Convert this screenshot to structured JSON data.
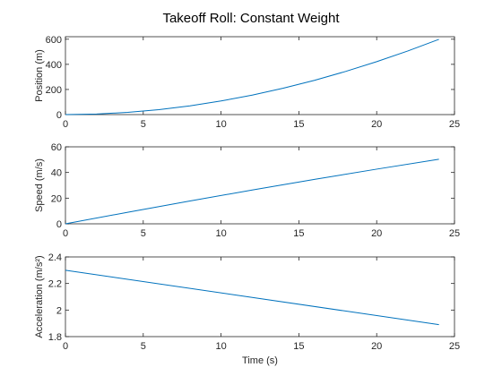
{
  "figure": {
    "title": "Takeoff Roll: Constant Weight",
    "line_color": "#0072bd",
    "axes_color": "#262626",
    "background": "#ffffff"
  },
  "chart_data": [
    {
      "type": "line",
      "title": "",
      "xlabel": "",
      "ylabel": "Position (m)",
      "xlim": [
        0,
        25
      ],
      "ylim": [
        0,
        620
      ],
      "xticks": [
        0,
        5,
        10,
        15,
        20,
        25
      ],
      "yticks": [
        0,
        200,
        400,
        600
      ],
      "xtick_labels": [
        "0",
        "5",
        "10",
        "15",
        "20",
        "25"
      ],
      "ytick_labels": [
        "0",
        "200",
        "400",
        "600"
      ],
      "series": [
        {
          "x": [
            0,
            2,
            4,
            6,
            8,
            10,
            12,
            14,
            16,
            18,
            20,
            22,
            24
          ],
          "y": [
            0,
            4.4,
            17.6,
            39.4,
            69.7,
            108.4,
            155.2,
            210.1,
            272.9,
            343.3,
            421.2,
            506.5,
            599
          ]
        }
      ],
      "grid": false
    },
    {
      "type": "line",
      "title": "",
      "xlabel": "",
      "ylabel": "Speed (m/s)",
      "xlim": [
        0,
        25
      ],
      "ylim": [
        0,
        60
      ],
      "xticks": [
        0,
        5,
        10,
        15,
        20,
        25
      ],
      "yticks": [
        0,
        20,
        40,
        60
      ],
      "xtick_labels": [
        "0",
        "5",
        "10",
        "15",
        "20",
        "25"
      ],
      "ytick_labels": [
        "0",
        "20",
        "40",
        "60"
      ],
      "series": [
        {
          "x": [
            0,
            4,
            8,
            12,
            16,
            20,
            24
          ],
          "y": [
            0,
            9.0,
            17.8,
            26.3,
            34.6,
            42.6,
            50.3
          ]
        }
      ],
      "grid": false
    },
    {
      "type": "line",
      "title": "",
      "xlabel": "Time (s)",
      "ylabel": "Acceleration (m/s²)",
      "xlim": [
        0,
        25
      ],
      "ylim": [
        1.8,
        2.4
      ],
      "xticks": [
        0,
        5,
        10,
        15,
        20,
        25
      ],
      "yticks": [
        1.8,
        2.0,
        2.2,
        2.4
      ],
      "xtick_labels": [
        "0",
        "5",
        "10",
        "15",
        "20",
        "25"
      ],
      "ytick_labels": [
        "1.8",
        "2",
        "2.2",
        "2.4"
      ],
      "series": [
        {
          "x": [
            0,
            24
          ],
          "y": [
            2.3,
            1.89
          ]
        }
      ],
      "grid": false
    }
  ]
}
